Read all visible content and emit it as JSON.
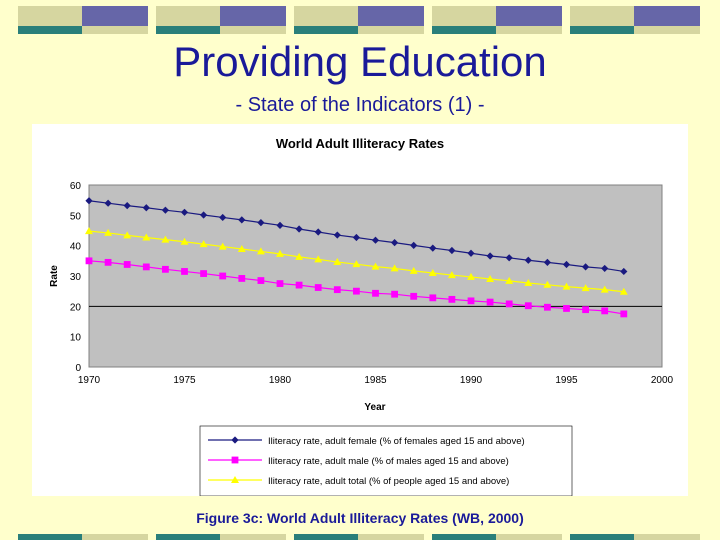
{
  "slide": {
    "title": "Providing Education",
    "subtitle": "- State of the Indicators (1) -",
    "caption": "Figure 3c: World Adult Illiteracy Rates (WB, 2000)"
  },
  "colors": {
    "background": "#ffffcc",
    "title_text": "#1a1a99",
    "plot_area": "#c0c0c0",
    "bar_olive": "#d6d6a0",
    "bar_purple": "#6666a8",
    "bar_teal": "#2a7f7a"
  },
  "chart_data": {
    "type": "line",
    "title": "World Adult Illiteracy Rates",
    "xlabel": "Year",
    "ylabel": "Rate",
    "xlim": [
      1970,
      2000
    ],
    "ylim": [
      0,
      60
    ],
    "xticks": [
      1970,
      1975,
      1980,
      1985,
      1990,
      1995,
      2000
    ],
    "yticks": [
      0,
      10,
      20,
      30,
      40,
      50,
      60
    ],
    "x": [
      1970,
      1971,
      1972,
      1973,
      1974,
      1975,
      1976,
      1977,
      1978,
      1979,
      1980,
      1981,
      1982,
      1983,
      1984,
      1985,
      1986,
      1987,
      1988,
      1989,
      1990,
      1991,
      1992,
      1993,
      1994,
      1995,
      1996,
      1997,
      1998
    ],
    "series": [
      {
        "name": "Iliteracy rate, adult female (% of females aged 15 and above)",
        "color": "#1a1a80",
        "marker": "diamond",
        "values": [
          54.8,
          54.0,
          53.2,
          52.5,
          51.7,
          51.0,
          50.1,
          49.3,
          48.5,
          47.6,
          46.7,
          45.5,
          44.5,
          43.5,
          42.7,
          41.8,
          41.0,
          40.1,
          39.2,
          38.4,
          37.5,
          36.6,
          36.0,
          35.2,
          34.5,
          33.8,
          33.0,
          32.5,
          31.5
        ]
      },
      {
        "name": "Iliteracy rate, adult male (% of males aged 15 and above)",
        "color": "#ff00ff",
        "marker": "square",
        "values": [
          35.0,
          34.5,
          33.8,
          33.0,
          32.2,
          31.5,
          30.8,
          30.0,
          29.2,
          28.5,
          27.5,
          27.0,
          26.2,
          25.5,
          25.0,
          24.3,
          24.0,
          23.3,
          22.8,
          22.3,
          21.8,
          21.4,
          20.8,
          20.2,
          19.7,
          19.3,
          18.9,
          18.5,
          17.5
        ]
      },
      {
        "name": "Iliteracy rate, adult total (% of people aged 15 and above)",
        "color": "#ffff00",
        "marker": "triangle",
        "values": [
          44.8,
          44.2,
          43.4,
          42.7,
          42.0,
          41.3,
          40.5,
          39.7,
          38.9,
          38.1,
          37.3,
          36.3,
          35.5,
          34.6,
          33.9,
          33.1,
          32.5,
          31.7,
          31.0,
          30.3,
          29.7,
          29.0,
          28.4,
          27.7,
          27.1,
          26.5,
          26.0,
          25.5,
          24.8
        ]
      }
    ],
    "legend_position": "bottom"
  }
}
